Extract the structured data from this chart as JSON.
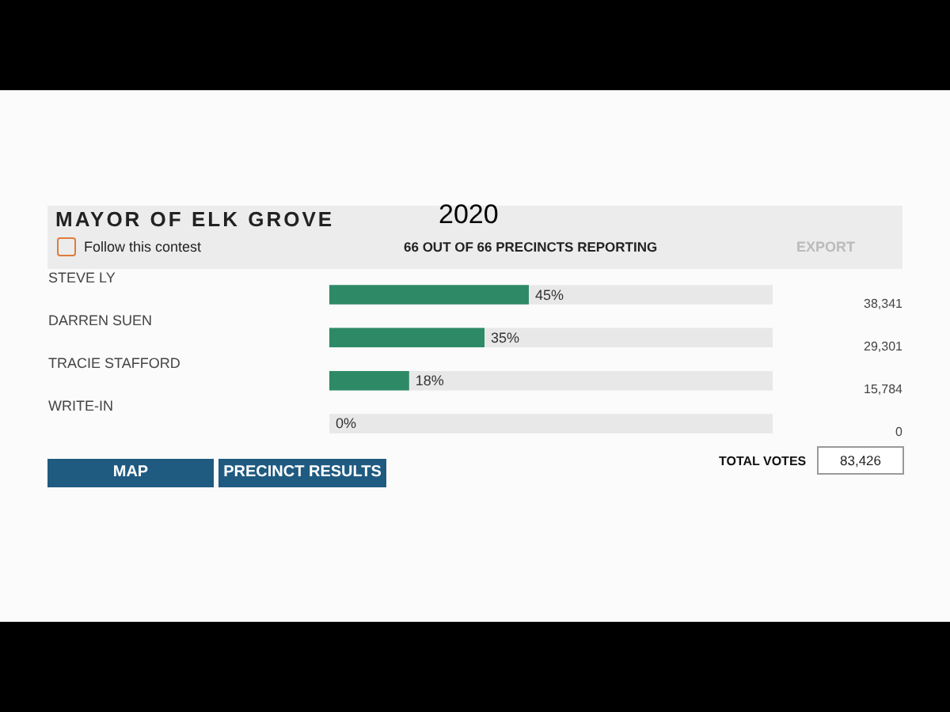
{
  "chart_data": {
    "type": "bar",
    "orientation": "horizontal",
    "title": "MAYOR OF ELK GROVE",
    "subtitle": "2020",
    "categories": [
      "STEVE LY",
      "DARREN SUEN",
      "TRACIE STAFFORD",
      "WRITE-IN"
    ],
    "values": [
      45,
      35,
      18,
      0
    ],
    "value_labels": [
      "45%",
      "35%",
      "18%",
      "0%"
    ],
    "color": "#2e8a66",
    "xlim": [
      0,
      100
    ],
    "bands": [
      {
        "axis": "x",
        "from": 0,
        "to": 100,
        "color": "#e8e8e8"
      }
    ],
    "annotations": [
      "38,341",
      "29,301",
      "15,784",
      "0",
      "Follow this contest",
      "66 OUT OF 66 PRECINCTS REPORTING",
      "EXPORT",
      "TOTAL VOTES",
      "83,426",
      "MAP",
      "PRECINCT RESULTS"
    ]
  }
}
